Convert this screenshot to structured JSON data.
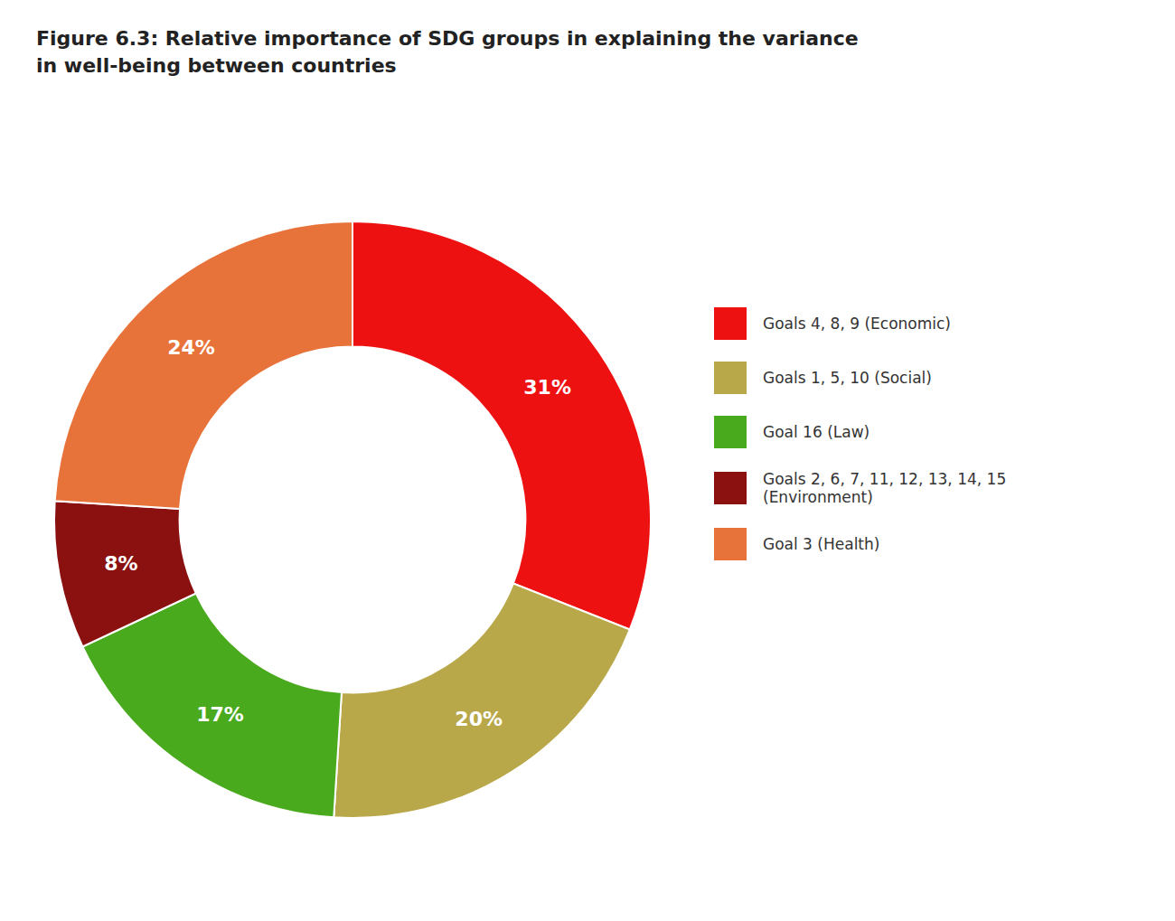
{
  "chart_data": {
    "type": "donut",
    "title": "Figure 6.3: Relative importance of SDG groups in explaining the variance\nin well-being between countries",
    "categories": [
      "Goals 4, 8, 9 (Economic)",
      "Goals 1, 5, 10 (Social)",
      "Goal 16 (Law)",
      "Goals 2, 6, 7, 11, 12, 13, 14, 15\n(Environment)",
      "Goal 3 (Health)"
    ],
    "values": [
      31,
      20,
      17,
      8,
      24
    ],
    "value_labels": [
      "31%",
      "20%",
      "17%",
      "8%",
      "24%"
    ],
    "colors": [
      "#ee1111",
      "#b8a84a",
      "#4aaa1e",
      "#8b1010",
      "#e8733a"
    ],
    "data_labels": true,
    "legend": "right"
  }
}
